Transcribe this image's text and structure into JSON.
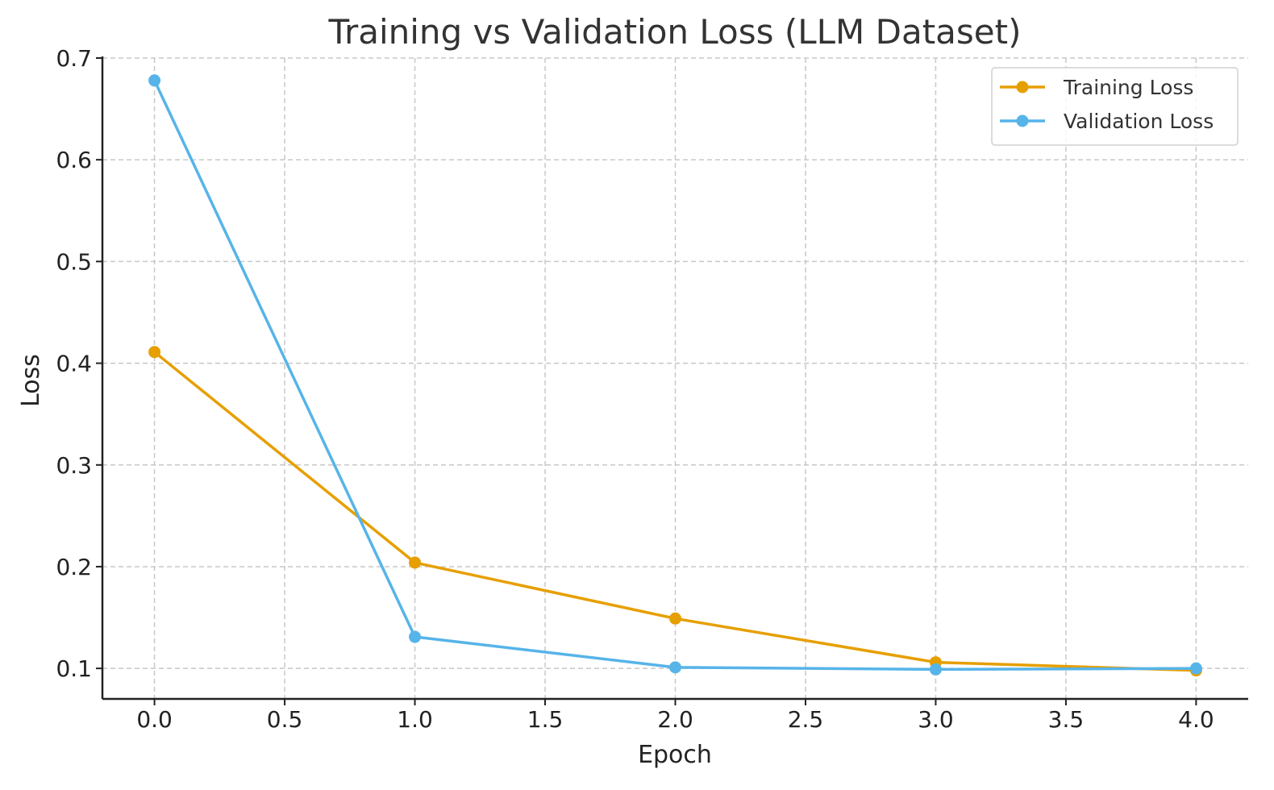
{
  "chart_data": {
    "type": "line",
    "title": "Training vs Validation Loss (LLM Dataset)",
    "xlabel": "Epoch",
    "ylabel": "Loss",
    "xlim": [
      -0.2,
      4.2
    ],
    "ylim": [
      0.07,
      0.7
    ],
    "xticks": [
      0.0,
      0.5,
      1.0,
      1.5,
      2.0,
      2.5,
      3.0,
      3.5,
      4.0
    ],
    "xtick_labels": [
      "0.0",
      "0.5",
      "1.0",
      "1.5",
      "2.0",
      "2.5",
      "3.0",
      "3.5",
      "4.0"
    ],
    "yticks": [
      0.1,
      0.2,
      0.3,
      0.4,
      0.5,
      0.6,
      0.7
    ],
    "ytick_labels": [
      "0.1",
      "0.2",
      "0.3",
      "0.4",
      "0.5",
      "0.6",
      "0.7"
    ],
    "grid": true,
    "legend_position": "top-right",
    "x": [
      0,
      1,
      2,
      3,
      4
    ],
    "series": [
      {
        "name": "Training Loss",
        "color": "#E69F00",
        "marker": "circle",
        "values": [
          0.411,
          0.204,
          0.149,
          0.106,
          0.098
        ]
      },
      {
        "name": "Validation Loss",
        "color": "#56B4E9",
        "marker": "circle",
        "values": [
          0.678,
          0.131,
          0.101,
          0.099,
          0.1
        ]
      }
    ]
  }
}
